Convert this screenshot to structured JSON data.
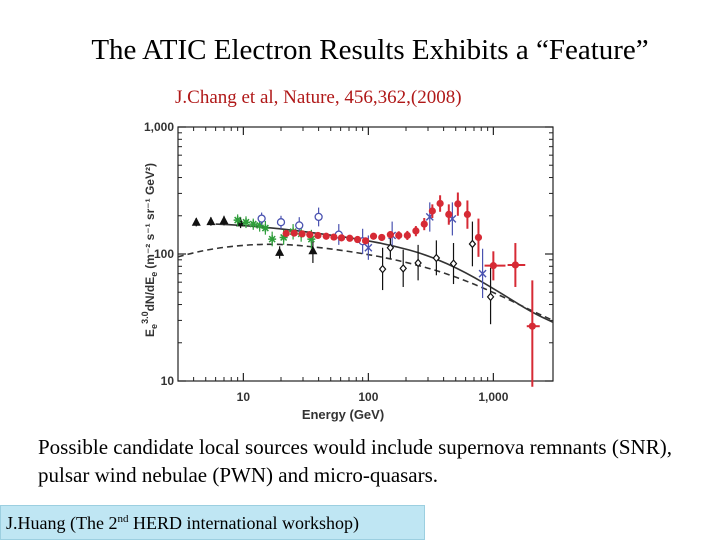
{
  "slide": {
    "title": "The ATIC Electron Results Exhibits a “Feature”",
    "citation": "J.Chang et al, Nature, 456,362,(2008)",
    "caption": "Possible candidate local sources would include supernova remnants (SNR), pulsar wind nebulae (PWN) and micro-quasars.",
    "credit": {
      "prefix": "J.Huang (The 2",
      "superscript": "nd",
      "suffix": " HERD international workshop)"
    }
  },
  "chart_data": {
    "type": "scatter",
    "x_scale": "log",
    "y_scale": "log",
    "xlim": [
      3,
      3000
    ],
    "ylim": [
      10,
      1000
    ],
    "xlabel": "Energy (GeV)",
    "ylabel": "E_e^3.0 dN/dE_e (m^-2 s^-1 sr^-1 GeV^2)",
    "ylabel_parts": {
      "exp": "3.0",
      "main": "dN/dE",
      "sub": "e",
      "units": "(m⁻² s⁻¹ sr⁻¹ GeV²)"
    },
    "x_ticks": [
      {
        "value": 10,
        "label": "10"
      },
      {
        "value": 100,
        "label": "100"
      },
      {
        "value": 1000,
        "label": "1,000"
      }
    ],
    "y_ticks": [
      {
        "value": 10,
        "label": "10"
      },
      {
        "value": 100,
        "label": "100"
      },
      {
        "value": 1000,
        "label": "1,000"
      }
    ],
    "colors": {
      "atic": "#d62a35",
      "green": "#2e9e3a",
      "blue": "#4a52b0",
      "black": "#111111",
      "gray": "#555555",
      "curve": "#333333"
    },
    "series": [
      {
        "marker": "triangle",
        "color": "#111111",
        "points": [
          {
            "x": 4.2,
            "y": 178,
            "lo": 165,
            "hi": 192
          },
          {
            "x": 5.5,
            "y": 180,
            "lo": 167,
            "hi": 195
          },
          {
            "x": 7.0,
            "y": 183,
            "lo": 168,
            "hi": 200
          },
          {
            "x": 9.5,
            "y": 176,
            "lo": 160,
            "hi": 195
          },
          {
            "x": 19.5,
            "y": 103,
            "lo": 92,
            "hi": 115
          },
          {
            "x": 36,
            "y": 106,
            "lo": 85,
            "hi": 130
          }
        ]
      },
      {
        "marker": "star",
        "color": "#2e9e3a",
        "points": [
          {
            "x": 9,
            "y": 185,
            "lo": 165,
            "hi": 205
          },
          {
            "x": 10.5,
            "y": 178,
            "lo": 160,
            "hi": 198
          },
          {
            "x": 12,
            "y": 172,
            "lo": 155,
            "hi": 190
          },
          {
            "x": 13.5,
            "y": 168,
            "lo": 150,
            "hi": 188
          },
          {
            "x": 15,
            "y": 160,
            "lo": 142,
            "hi": 182
          },
          {
            "x": 17,
            "y": 131,
            "lo": 115,
            "hi": 150
          },
          {
            "x": 21,
            "y": 135,
            "lo": 118,
            "hi": 155
          },
          {
            "x": 25,
            "y": 150,
            "lo": 130,
            "hi": 172
          },
          {
            "x": 29,
            "y": 144,
            "lo": 125,
            "hi": 165
          },
          {
            "x": 35,
            "y": 131,
            "lo": 110,
            "hi": 155
          }
        ]
      },
      {
        "marker": "circle-open",
        "color": "#4a52b0",
        "points": [
          {
            "x": 14,
            "y": 190,
            "lo": 170,
            "hi": 212
          },
          {
            "x": 20,
            "y": 178,
            "lo": 158,
            "hi": 200
          },
          {
            "x": 28,
            "y": 168,
            "lo": 145,
            "hi": 195
          },
          {
            "x": 40,
            "y": 196,
            "lo": 165,
            "hi": 232
          },
          {
            "x": 58,
            "y": 142,
            "lo": 118,
            "hi": 172
          },
          {
            "x": 90,
            "y": 126,
            "lo": 100,
            "hi": 158
          }
        ]
      },
      {
        "marker": "cross",
        "color": "#4a52b0",
        "points": [
          {
            "x": 100,
            "y": 112,
            "lo": 90,
            "hi": 140
          },
          {
            "x": 155,
            "y": 140,
            "lo": 110,
            "hi": 180
          },
          {
            "x": 310,
            "y": 196,
            "lo": 150,
            "hi": 255
          },
          {
            "x": 470,
            "y": 189,
            "lo": 140,
            "hi": 255
          },
          {
            "x": 820,
            "y": 70,
            "lo": 45,
            "hi": 110
          }
        ]
      },
      {
        "marker": "diamond-open",
        "color": "#111111",
        "points": [
          {
            "x": 150,
            "y": 112,
            "lo": 92,
            "hi": 140
          },
          {
            "x": 130,
            "y": 76,
            "lo": 52,
            "hi": 112
          },
          {
            "x": 190,
            "y": 77,
            "lo": 55,
            "hi": 108
          },
          {
            "x": 250,
            "y": 85,
            "lo": 62,
            "hi": 118
          },
          {
            "x": 350,
            "y": 93,
            "lo": 68,
            "hi": 128
          },
          {
            "x": 480,
            "y": 84,
            "lo": 58,
            "hi": 122
          },
          {
            "x": 680,
            "y": 120,
            "lo": 80,
            "hi": 180
          },
          {
            "x": 950,
            "y": 46,
            "lo": 28,
            "hi": 78
          }
        ]
      },
      {
        "marker": "circle-filled",
        "color": "#d62a35",
        "points": [
          {
            "x": 22,
            "y": 145,
            "lo": 140,
            "hi": 150
          },
          {
            "x": 25.5,
            "y": 146,
            "lo": 141,
            "hi": 151
          },
          {
            "x": 29.5,
            "y": 144,
            "lo": 139,
            "hi": 149
          },
          {
            "x": 34,
            "y": 142,
            "lo": 137,
            "hi": 147
          },
          {
            "x": 39.5,
            "y": 140,
            "lo": 135,
            "hi": 145
          },
          {
            "x": 46,
            "y": 138,
            "lo": 133,
            "hi": 143
          },
          {
            "x": 53,
            "y": 136,
            "lo": 131,
            "hi": 141
          },
          {
            "x": 61,
            "y": 134,
            "lo": 129,
            "hi": 139
          },
          {
            "x": 71,
            "y": 133,
            "lo": 128,
            "hi": 138
          },
          {
            "x": 82,
            "y": 130,
            "lo": 124,
            "hi": 136
          },
          {
            "x": 95,
            "y": 127,
            "lo": 121,
            "hi": 133
          },
          {
            "x": 110,
            "y": 138,
            "lo": 131,
            "hi": 145
          },
          {
            "x": 128,
            "y": 135,
            "lo": 127,
            "hi": 143
          },
          {
            "x": 150,
            "y": 142,
            "lo": 133,
            "hi": 151
          },
          {
            "x": 175,
            "y": 140,
            "lo": 130,
            "hi": 151
          },
          {
            "x": 205,
            "y": 140,
            "lo": 129,
            "hi": 152
          },
          {
            "x": 240,
            "y": 152,
            "lo": 138,
            "hi": 166
          },
          {
            "x": 280,
            "y": 172,
            "lo": 154,
            "hi": 192
          },
          {
            "x": 325,
            "y": 218,
            "lo": 192,
            "hi": 246
          },
          {
            "x": 375,
            "y": 250,
            "lo": 215,
            "hi": 290
          },
          {
            "x": 440,
            "y": 205,
            "lo": 170,
            "hi": 246
          },
          {
            "x": 520,
            "y": 248,
            "lo": 200,
            "hi": 305
          },
          {
            "x": 620,
            "y": 205,
            "lo": 158,
            "hi": 264
          },
          {
            "x": 760,
            "y": 135,
            "lo": 95,
            "hi": 190
          },
          {
            "x": 1000,
            "y": 81,
            "lo": 62,
            "hi": 105,
            "xlo": 850,
            "xhi": 1250
          },
          {
            "x": 1500,
            "y": 82,
            "lo": 55,
            "hi": 122,
            "xlo": 1300,
            "xhi": 1800
          },
          {
            "x": 2050,
            "y": 27,
            "lo": 9,
            "hi": 62,
            "xlo": 1850,
            "xhi": 2350
          }
        ]
      }
    ],
    "curves": [
      {
        "style": "solid",
        "color": "#333333",
        "points": [
          [
            6,
            172
          ],
          [
            10,
            168
          ],
          [
            20,
            158
          ],
          [
            40,
            145
          ],
          [
            80,
            132
          ],
          [
            150,
            118
          ],
          [
            300,
            98
          ],
          [
            600,
            72
          ],
          [
            1200,
            48
          ],
          [
            2000,
            35
          ],
          [
            3000,
            29
          ]
        ]
      },
      {
        "style": "dashed",
        "color": "#333333",
        "points": [
          [
            3,
            95
          ],
          [
            5,
            108
          ],
          [
            10,
            118
          ],
          [
            20,
            120
          ],
          [
            40,
            113
          ],
          [
            80,
            103
          ],
          [
            150,
            92
          ],
          [
            300,
            78
          ],
          [
            600,
            62
          ],
          [
            1200,
            46
          ],
          [
            2000,
            36
          ],
          [
            3000,
            30
          ]
        ]
      }
    ]
  }
}
